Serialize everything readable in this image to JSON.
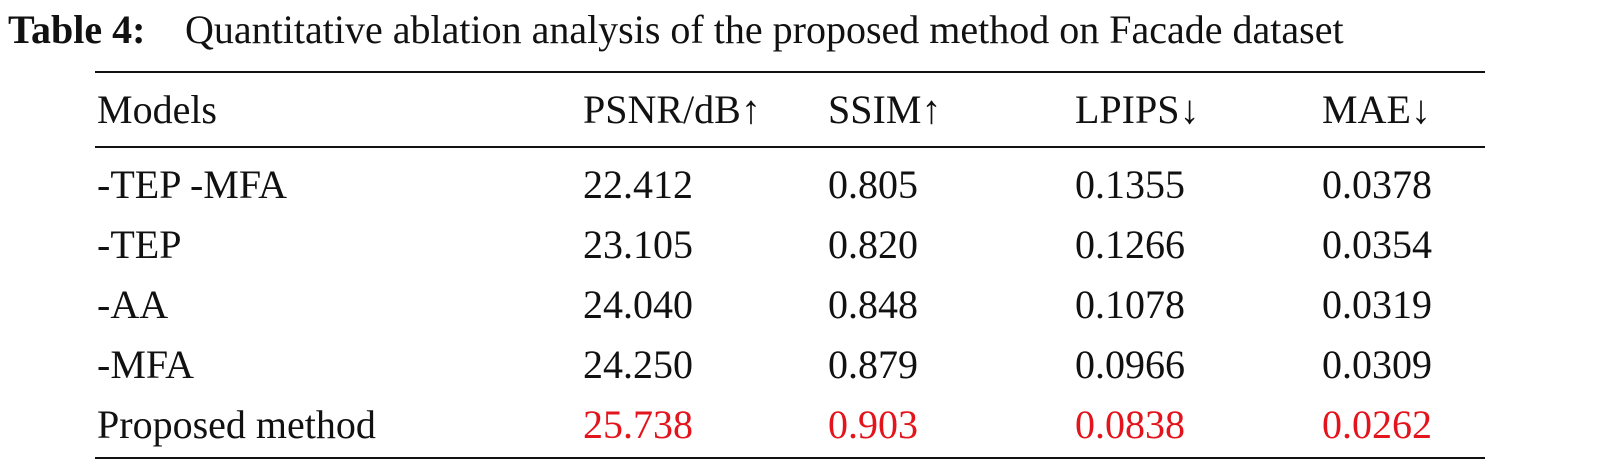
{
  "caption": {
    "label": "Table 4:",
    "text": "Quantitative ablation analysis of the proposed method on Facade dataset"
  },
  "table": {
    "header": [
      "Models",
      "PSNR/dB↑",
      "SSIM↑",
      "LPIPS↓",
      "MAE↓"
    ],
    "rows": [
      [
        "-TEP -MFA",
        "22.412",
        "0.805",
        "0.1355",
        "0.0378"
      ],
      [
        "-TEP",
        "23.105",
        "0.820",
        "0.1266",
        "0.0354"
      ],
      [
        "-AA",
        "24.040",
        "0.848",
        "0.1078",
        "0.0319"
      ],
      [
        "-MFA",
        "24.250",
        "0.879",
        "0.0966",
        "0.0309"
      ],
      [
        "Proposed method",
        "25.738",
        "0.903",
        "0.0838",
        "0.0262"
      ]
    ]
  }
}
